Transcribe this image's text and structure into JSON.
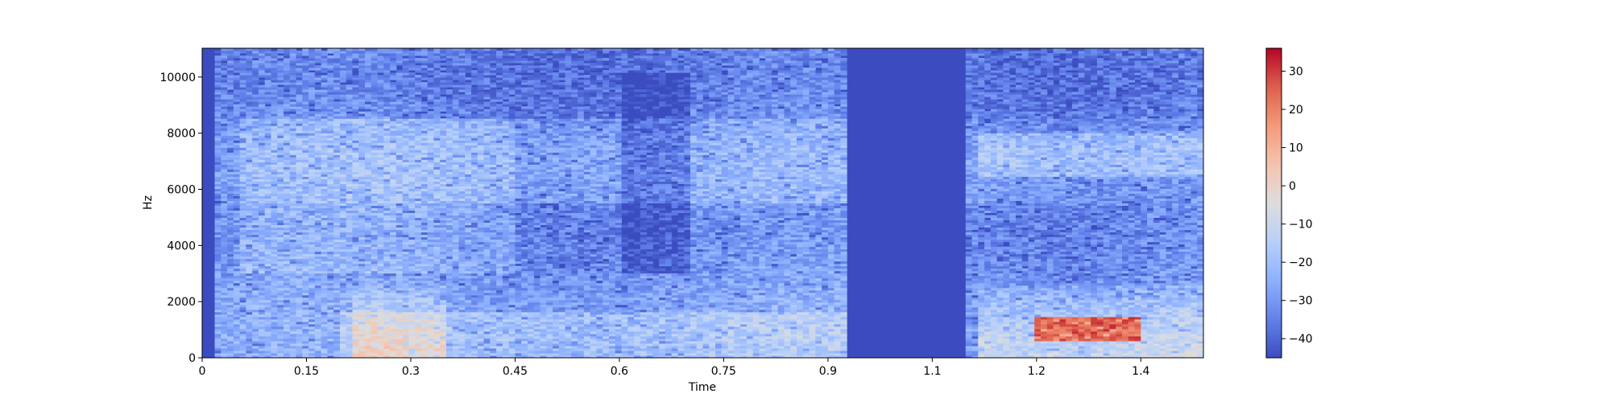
{
  "chart_data": {
    "type": "heatmap",
    "title": "",
    "xlabel": "Time",
    "ylabel": "Hz",
    "xlim": [
      0,
      1.44
    ],
    "ylim": [
      0,
      11025
    ],
    "x_ticks": [
      0,
      0.15,
      0.3,
      0.45,
      0.6,
      0.75,
      0.9,
      1.05,
      1.2,
      1.35
    ],
    "x_tick_labels": [
      "0",
      "0.15",
      "0.3",
      "0.45",
      "0.6",
      "0.75",
      "0.9",
      "1.1",
      "1.2",
      "1.4"
    ],
    "y_ticks": [
      0,
      2000,
      4000,
      6000,
      8000,
      10000
    ],
    "y_tick_labels": [
      "0",
      "2000",
      "4000",
      "6000",
      "8000",
      "10000"
    ],
    "colormap": "coolwarm",
    "colorbar": {
      "min": -45,
      "max": 36,
      "ticks": [
        -40,
        -30,
        -20,
        -10,
        0,
        10,
        20,
        30
      ],
      "tick_labels": [
        "−40",
        "−30",
        "−20",
        "−10",
        "0",
        "10",
        "20",
        "30"
      ]
    },
    "features": {
      "silent_segments": [
        [
          0,
          0.02
        ],
        [
          0.93,
          1.1
        ]
      ],
      "low_freq_high_energy": [
        [
          0.22,
          0.35
        ],
        [
          1.12,
          1.44
        ]
      ],
      "peak_db_region": {
        "time": [
          1.2,
          1.35
        ],
        "freq_hz": [
          600,
          1500
        ],
        "db": 25
      }
    }
  }
}
